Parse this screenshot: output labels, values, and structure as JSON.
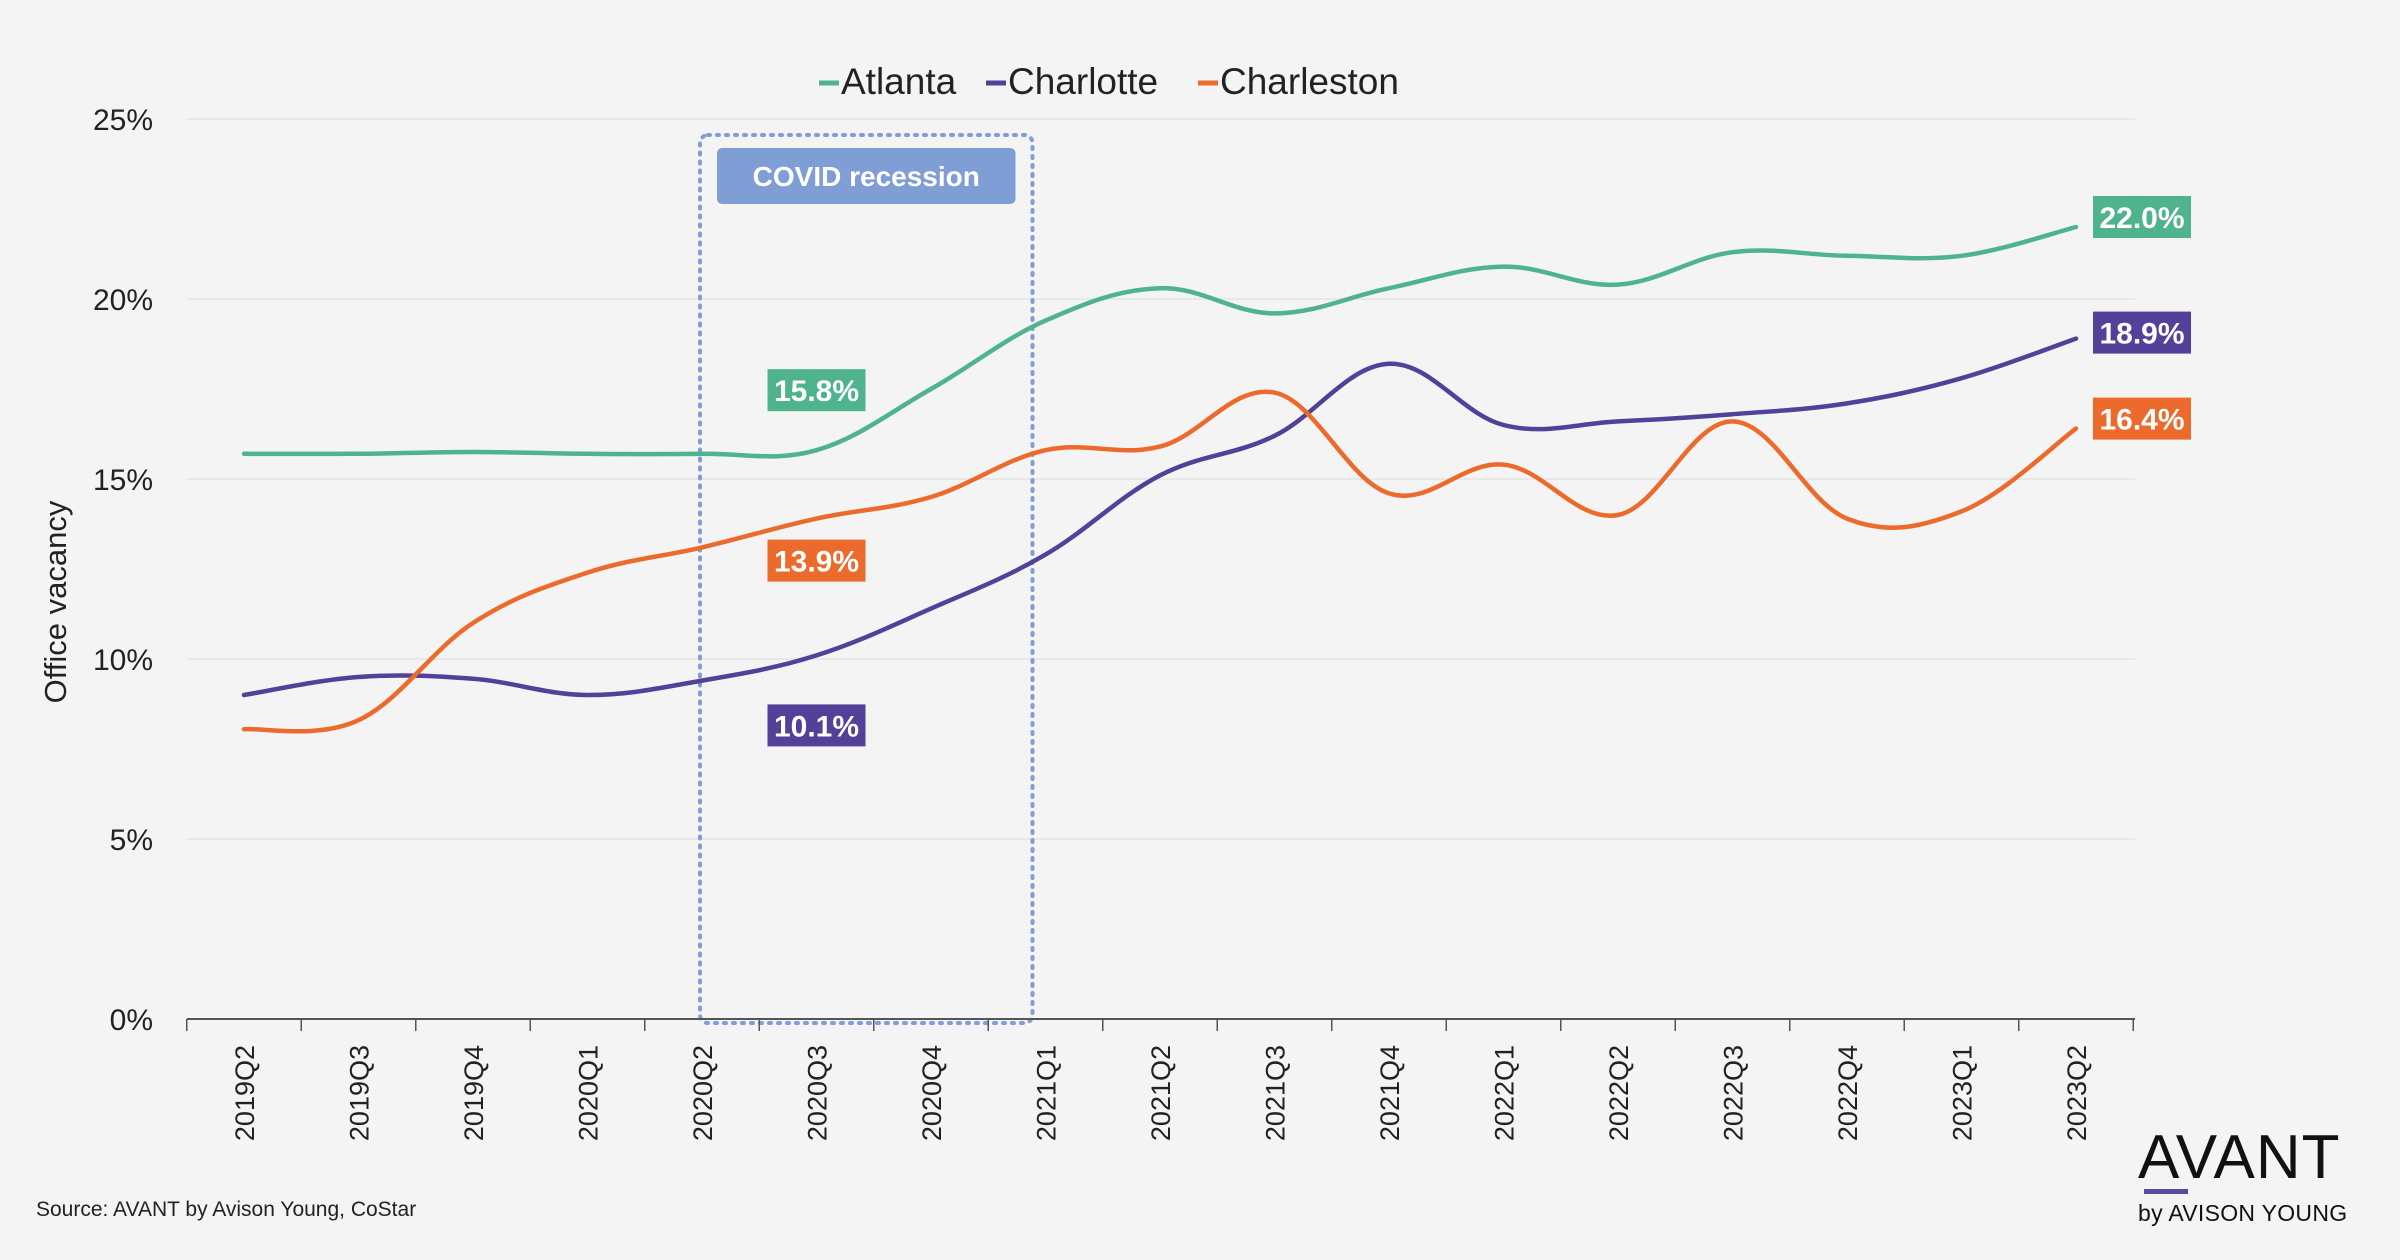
{
  "chart_data": {
    "type": "line",
    "ylabel": "Office vacancy",
    "xlabel": "",
    "ylim": [
      0,
      25
    ],
    "yticks": [
      0,
      5,
      10,
      15,
      20,
      25
    ],
    "ytick_labels": [
      "0%",
      "5%",
      "10%",
      "15%",
      "20%",
      "25%"
    ],
    "categories": [
      "2019Q2",
      "2019Q3",
      "2019Q4",
      "2020Q1",
      "2020Q2",
      "2020Q3",
      "2020Q4",
      "2021Q1",
      "2021Q2",
      "2021Q3",
      "2021Q4",
      "2022Q1",
      "2022Q2",
      "2022Q3",
      "2022Q4",
      "2023Q1",
      "2023Q2"
    ],
    "legend_position": "top-center",
    "grid": true,
    "series": [
      {
        "name": "Atlanta",
        "color": "#4fb38d",
        "values": [
          15.7,
          15.7,
          15.75,
          15.7,
          15.7,
          15.8,
          17.5,
          19.4,
          20.3,
          19.6,
          20.3,
          20.9,
          20.4,
          21.3,
          21.2,
          21.2,
          22.0
        ]
      },
      {
        "name": "Charlotte",
        "color": "#524099",
        "values": [
          9.0,
          9.5,
          9.45,
          9.0,
          9.4,
          10.1,
          11.4,
          12.9,
          15.1,
          16.2,
          18.2,
          16.5,
          16.6,
          16.8,
          17.1,
          17.8,
          18.9
        ]
      },
      {
        "name": "Charleston",
        "color": "#ec6a2c",
        "values": [
          8.05,
          8.3,
          11.0,
          12.4,
          13.1,
          13.9,
          14.5,
          15.8,
          15.9,
          17.4,
          14.6,
          15.4,
          14.0,
          16.6,
          13.9,
          14.1,
          16.4
        ]
      }
    ],
    "annotations": [
      {
        "text": "COVID recession",
        "type": "region",
        "from": "2020Q2",
        "to": "2021Q1"
      }
    ],
    "data_labels": [
      {
        "text": "15.8%",
        "series": "Atlanta",
        "category": "2020Q3"
      },
      {
        "text": "13.9%",
        "series": "Charleston",
        "category": "2020Q3"
      },
      {
        "text": "10.1%",
        "series": "Charlotte",
        "category": "2020Q3"
      },
      {
        "text": "22.0%",
        "series": "Atlanta",
        "category": "2023Q2"
      },
      {
        "text": "18.9%",
        "series": "Charlotte",
        "category": "2023Q2"
      },
      {
        "text": "16.4%",
        "series": "Charleston",
        "category": "2023Q2"
      }
    ]
  },
  "source": "Source: AVANT by Avison Young, CoStar",
  "logo": {
    "word": "AVANT",
    "sub": "by AVISON YOUNG",
    "accent": "#5b4a9e"
  }
}
